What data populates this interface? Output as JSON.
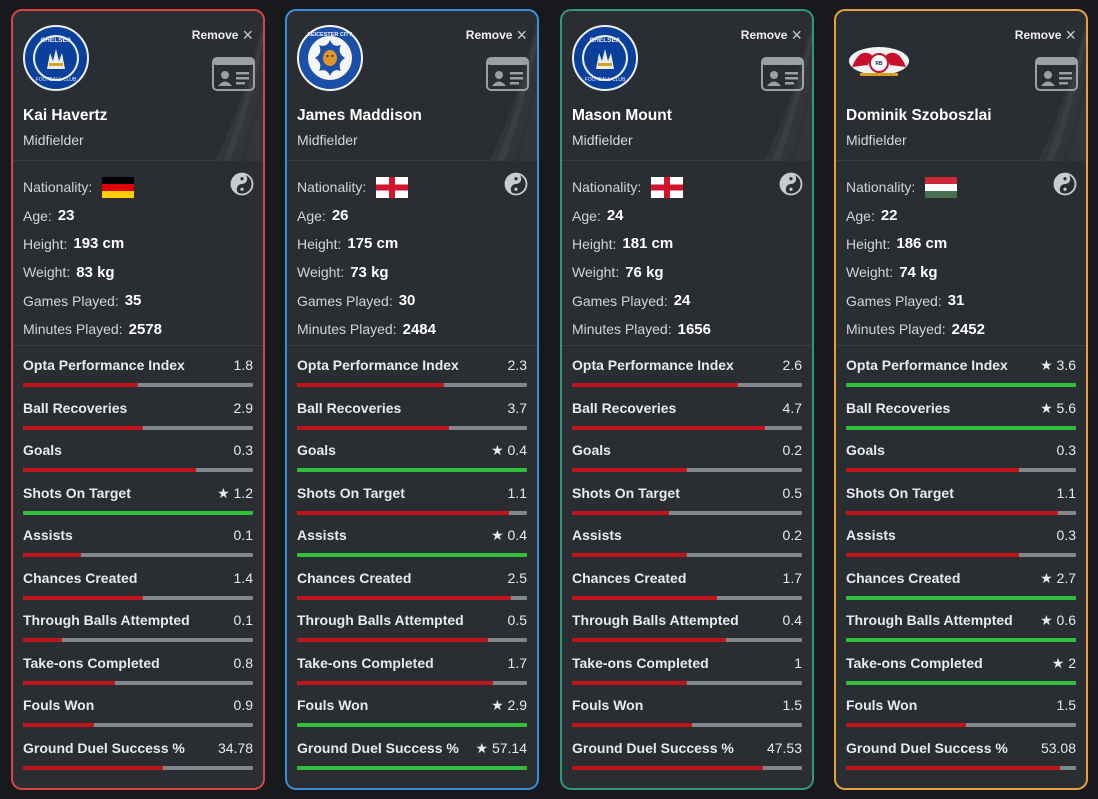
{
  "ui": {
    "remove_label": "Remove",
    "close_icon": "×",
    "star_icon": "★",
    "bar_red": "#c0141b",
    "bar_green": "#2fbf3a",
    "bar_track": "#83878b"
  },
  "players": [
    {
      "name": "Kai Havertz",
      "position": "Midfielder",
      "club_logo": "chelsea-crest",
      "border_color": "#d94545",
      "nationality_flag": "germany-flag",
      "bio": {
        "nationality_label": "Nationality:",
        "age_label": "Age:",
        "age": "23",
        "height_label": "Height:",
        "height": "193 cm",
        "weight_label": "Weight:",
        "weight": "83 kg",
        "games_label": "Games Played:",
        "games": "35",
        "minutes_label": "Minutes Played:",
        "minutes": "2578"
      },
      "stats": [
        {
          "label": "Opta Performance Index",
          "value": "1.8",
          "best": false,
          "fill_fraction": 0.5
        },
        {
          "label": "Ball Recoveries",
          "value": "2.9",
          "best": false,
          "fill_fraction": 0.52
        },
        {
          "label": "Goals",
          "value": "0.3",
          "best": false,
          "fill_fraction": 0.75
        },
        {
          "label": "Shots On Target",
          "value": "1.2",
          "best": true,
          "fill_fraction": 1.0
        },
        {
          "label": "Assists",
          "value": "0.1",
          "best": false,
          "fill_fraction": 0.25
        },
        {
          "label": "Chances Created",
          "value": "1.4",
          "best": false,
          "fill_fraction": 0.52
        },
        {
          "label": "Through Balls Attempted",
          "value": "0.1",
          "best": false,
          "fill_fraction": 0.17
        },
        {
          "label": "Take-ons Completed",
          "value": "0.8",
          "best": false,
          "fill_fraction": 0.4
        },
        {
          "label": "Fouls Won",
          "value": "0.9",
          "best": false,
          "fill_fraction": 0.31
        },
        {
          "label": "Ground Duel Success %",
          "value": "34.78",
          "best": false,
          "fill_fraction": 0.61
        }
      ]
    },
    {
      "name": "James Maddison",
      "position": "Midfielder",
      "club_logo": "leicester-city-crest",
      "border_color": "#3d8ed6",
      "nationality_flag": "england-flag",
      "bio": {
        "nationality_label": "Nationality:",
        "age_label": "Age:",
        "age": "26",
        "height_label": "Height:",
        "height": "175 cm",
        "weight_label": "Weight:",
        "weight": "73 kg",
        "games_label": "Games Played:",
        "games": "30",
        "minutes_label": "Minutes Played:",
        "minutes": "2484"
      },
      "stats": [
        {
          "label": "Opta Performance Index",
          "value": "2.3",
          "best": false,
          "fill_fraction": 0.64
        },
        {
          "label": "Ball Recoveries",
          "value": "3.7",
          "best": false,
          "fill_fraction": 0.66
        },
        {
          "label": "Goals",
          "value": "0.4",
          "best": true,
          "fill_fraction": 1.0
        },
        {
          "label": "Shots On Target",
          "value": "1.1",
          "best": false,
          "fill_fraction": 0.92
        },
        {
          "label": "Assists",
          "value": "0.4",
          "best": true,
          "fill_fraction": 1.0
        },
        {
          "label": "Chances Created",
          "value": "2.5",
          "best": false,
          "fill_fraction": 0.93
        },
        {
          "label": "Through Balls Attempted",
          "value": "0.5",
          "best": false,
          "fill_fraction": 0.83
        },
        {
          "label": "Take-ons Completed",
          "value": "1.7",
          "best": false,
          "fill_fraction": 0.85
        },
        {
          "label": "Fouls Won",
          "value": "2.9",
          "best": true,
          "fill_fraction": 1.0
        },
        {
          "label": "Ground Duel Success %",
          "value": "57.14",
          "best": true,
          "fill_fraction": 1.0
        }
      ]
    },
    {
      "name": "Mason Mount",
      "position": "Midfielder",
      "club_logo": "chelsea-crest",
      "border_color": "#2e9a78",
      "nationality_flag": "england-flag",
      "bio": {
        "nationality_label": "Nationality:",
        "age_label": "Age:",
        "age": "24",
        "height_label": "Height:",
        "height": "181 cm",
        "weight_label": "Weight:",
        "weight": "76 kg",
        "games_label": "Games Played:",
        "games": "24",
        "minutes_label": "Minutes Played:",
        "minutes": "1656"
      },
      "stats": [
        {
          "label": "Opta Performance Index",
          "value": "2.6",
          "best": false,
          "fill_fraction": 0.72
        },
        {
          "label": "Ball Recoveries",
          "value": "4.7",
          "best": false,
          "fill_fraction": 0.84
        },
        {
          "label": "Goals",
          "value": "0.2",
          "best": false,
          "fill_fraction": 0.5
        },
        {
          "label": "Shots On Target",
          "value": "0.5",
          "best": false,
          "fill_fraction": 0.42
        },
        {
          "label": "Assists",
          "value": "0.2",
          "best": false,
          "fill_fraction": 0.5
        },
        {
          "label": "Chances Created",
          "value": "1.7",
          "best": false,
          "fill_fraction": 0.63
        },
        {
          "label": "Through Balls Attempted",
          "value": "0.4",
          "best": false,
          "fill_fraction": 0.67
        },
        {
          "label": "Take-ons Completed",
          "value": "1",
          "best": false,
          "fill_fraction": 0.5
        },
        {
          "label": "Fouls Won",
          "value": "1.5",
          "best": false,
          "fill_fraction": 0.52
        },
        {
          "label": "Ground Duel Success %",
          "value": "47.53",
          "best": false,
          "fill_fraction": 0.83
        }
      ]
    },
    {
      "name": "Dominik Szoboszlai",
      "position": "Midfielder",
      "club_logo": "rb-leipzig-crest",
      "border_color": "#e9a23b",
      "nationality_flag": "hungary-flag",
      "bio": {
        "nationality_label": "Nationality:",
        "age_label": "Age:",
        "age": "22",
        "height_label": "Height:",
        "height": "186 cm",
        "weight_label": "Weight:",
        "weight": "74 kg",
        "games_label": "Games Played:",
        "games": "31",
        "minutes_label": "Minutes Played:",
        "minutes": "2452"
      },
      "stats": [
        {
          "label": "Opta Performance Index",
          "value": "3.6",
          "best": true,
          "fill_fraction": 1.0
        },
        {
          "label": "Ball Recoveries",
          "value": "5.6",
          "best": true,
          "fill_fraction": 1.0
        },
        {
          "label": "Goals",
          "value": "0.3",
          "best": false,
          "fill_fraction": 0.75
        },
        {
          "label": "Shots On Target",
          "value": "1.1",
          "best": false,
          "fill_fraction": 0.92
        },
        {
          "label": "Assists",
          "value": "0.3",
          "best": false,
          "fill_fraction": 0.75
        },
        {
          "label": "Chances Created",
          "value": "2.7",
          "best": true,
          "fill_fraction": 1.0
        },
        {
          "label": "Through Balls Attempted",
          "value": "0.6",
          "best": true,
          "fill_fraction": 1.0
        },
        {
          "label": "Take-ons Completed",
          "value": "2",
          "best": true,
          "fill_fraction": 1.0
        },
        {
          "label": "Fouls Won",
          "value": "1.5",
          "best": false,
          "fill_fraction": 0.52
        },
        {
          "label": "Ground Duel Success %",
          "value": "53.08",
          "best": false,
          "fill_fraction": 0.93
        }
      ]
    }
  ]
}
